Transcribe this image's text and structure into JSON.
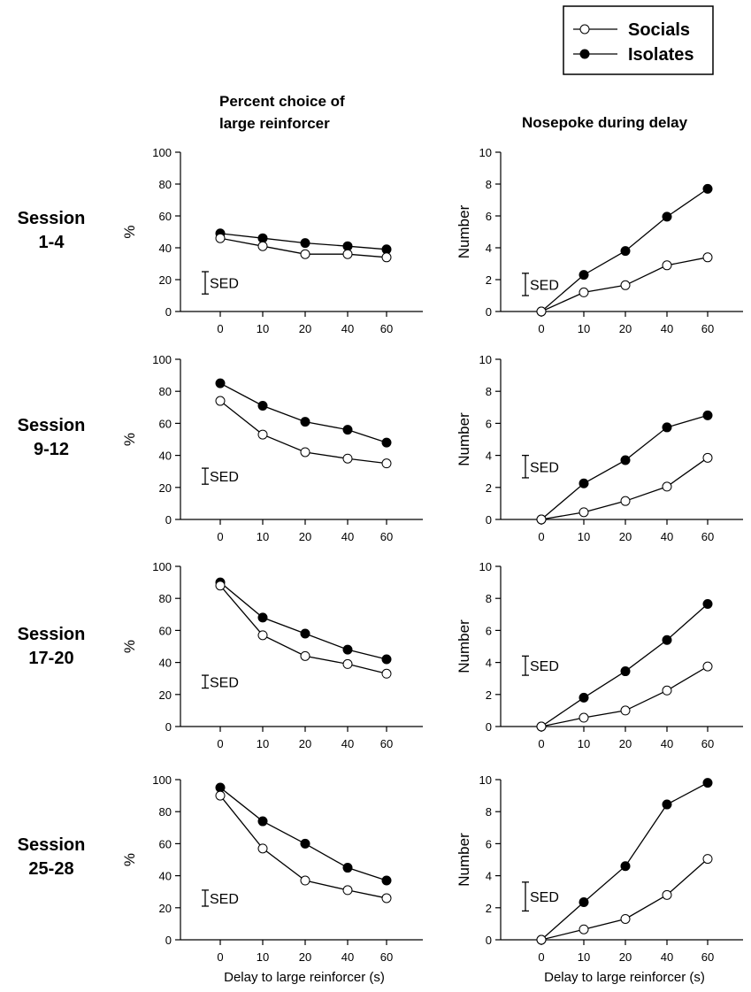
{
  "legend": {
    "position": "top-right",
    "entries": [
      {
        "name": "Socials",
        "marker": "open-circle"
      },
      {
        "name": "Isolates",
        "marker": "filled-circle"
      }
    ]
  },
  "column_titles": {
    "left": [
      "Percent choice of",
      "large reinforcer"
    ],
    "right": "Nosepoke during delay"
  },
  "row_labels": [
    [
      "Session",
      "1-4"
    ],
    [
      "Session",
      "9-12"
    ],
    [
      "Session",
      "17-20"
    ],
    [
      "Session",
      "25-28"
    ]
  ],
  "sed_label": "SED",
  "xlabel": "Delay to large reinforcer (s)",
  "colors": {
    "line": "#000000",
    "open_fill": "#ffffff",
    "filled": "#000000"
  },
  "chart_data": [
    {
      "type": "line",
      "row": 0,
      "column": "left",
      "ylabel": "%",
      "ylim": [
        0,
        100
      ],
      "yticks": [
        0,
        20,
        40,
        60,
        80,
        100
      ],
      "categories": [
        "0",
        "10",
        "20",
        "40",
        "60"
      ],
      "sed": [
        11,
        25
      ],
      "series": [
        {
          "name": "Socials",
          "values": [
            46,
            41,
            36,
            36,
            34
          ]
        },
        {
          "name": "Isolates",
          "values": [
            49,
            46,
            43,
            41,
            39
          ]
        }
      ]
    },
    {
      "type": "line",
      "row": 0,
      "column": "right",
      "ylabel": "Number",
      "ylim": [
        0,
        10
      ],
      "yticks": [
        0,
        2,
        4,
        6,
        8,
        10
      ],
      "categories": [
        "0",
        "10",
        "20",
        "40",
        "60"
      ],
      "sed": [
        1.0,
        2.4
      ],
      "series": [
        {
          "name": "Socials",
          "values": [
            0,
            1.2,
            1.65,
            2.9,
            3.4
          ]
        },
        {
          "name": "Isolates",
          "values": [
            0,
            2.3,
            3.8,
            5.95,
            7.7
          ]
        }
      ]
    },
    {
      "type": "line",
      "row": 1,
      "column": "left",
      "ylabel": "%",
      "ylim": [
        0,
        100
      ],
      "yticks": [
        0,
        20,
        40,
        60,
        80,
        100
      ],
      "categories": [
        "0",
        "10",
        "20",
        "40",
        "60"
      ],
      "sed": [
        22,
        32
      ],
      "series": [
        {
          "name": "Socials",
          "values": [
            74,
            53,
            42,
            38,
            35
          ]
        },
        {
          "name": "Isolates",
          "values": [
            85,
            71,
            61,
            56,
            48
          ]
        }
      ]
    },
    {
      "type": "line",
      "row": 1,
      "column": "right",
      "ylabel": "Number",
      "ylim": [
        0,
        10
      ],
      "yticks": [
        0,
        2,
        4,
        6,
        8,
        10
      ],
      "categories": [
        "0",
        "10",
        "20",
        "40",
        "60"
      ],
      "sed": [
        2.6,
        4.0
      ],
      "series": [
        {
          "name": "Socials",
          "values": [
            0,
            0.45,
            1.15,
            2.05,
            3.85
          ]
        },
        {
          "name": "Isolates",
          "values": [
            0,
            2.25,
            3.7,
            5.75,
            6.5
          ]
        }
      ]
    },
    {
      "type": "line",
      "row": 2,
      "column": "left",
      "ylabel": "%",
      "ylim": [
        0,
        100
      ],
      "yticks": [
        0,
        20,
        40,
        60,
        80,
        100
      ],
      "categories": [
        "0",
        "10",
        "20",
        "40",
        "60"
      ],
      "sed": [
        24,
        32
      ],
      "series": [
        {
          "name": "Socials",
          "values": [
            88,
            57,
            44,
            39,
            33
          ]
        },
        {
          "name": "Isolates",
          "values": [
            90,
            68,
            58,
            48,
            42
          ]
        }
      ]
    },
    {
      "type": "line",
      "row": 2,
      "column": "right",
      "ylabel": "Number",
      "ylim": [
        0,
        10
      ],
      "yticks": [
        0,
        2,
        4,
        6,
        8,
        10
      ],
      "categories": [
        "0",
        "10",
        "20",
        "40",
        "60"
      ],
      "sed": [
        3.2,
        4.4
      ],
      "series": [
        {
          "name": "Socials",
          "values": [
            0,
            0.55,
            1.0,
            2.25,
            3.75
          ]
        },
        {
          "name": "Isolates",
          "values": [
            0,
            1.8,
            3.45,
            5.4,
            7.65
          ]
        }
      ]
    },
    {
      "type": "line",
      "row": 3,
      "column": "left",
      "ylabel": "%",
      "ylim": [
        0,
        100
      ],
      "yticks": [
        0,
        20,
        40,
        60,
        80,
        100
      ],
      "categories": [
        "0",
        "10",
        "20",
        "40",
        "60"
      ],
      "sed": [
        21,
        31
      ],
      "series": [
        {
          "name": "Socials",
          "values": [
            90,
            57,
            37,
            31,
            26
          ]
        },
        {
          "name": "Isolates",
          "values": [
            95,
            74,
            60,
            45,
            37
          ]
        }
      ]
    },
    {
      "type": "line",
      "row": 3,
      "column": "right",
      "ylabel": "Number",
      "ylim": [
        0,
        10
      ],
      "yticks": [
        0,
        2,
        4,
        6,
        8,
        10
      ],
      "categories": [
        "0",
        "10",
        "20",
        "40",
        "60"
      ],
      "sed": [
        1.8,
        3.6
      ],
      "series": [
        {
          "name": "Socials",
          "values": [
            0,
            0.65,
            1.3,
            2.8,
            5.05
          ]
        },
        {
          "name": "Isolates",
          "values": [
            0,
            2.35,
            4.6,
            8.45,
            9.8
          ]
        }
      ]
    }
  ]
}
